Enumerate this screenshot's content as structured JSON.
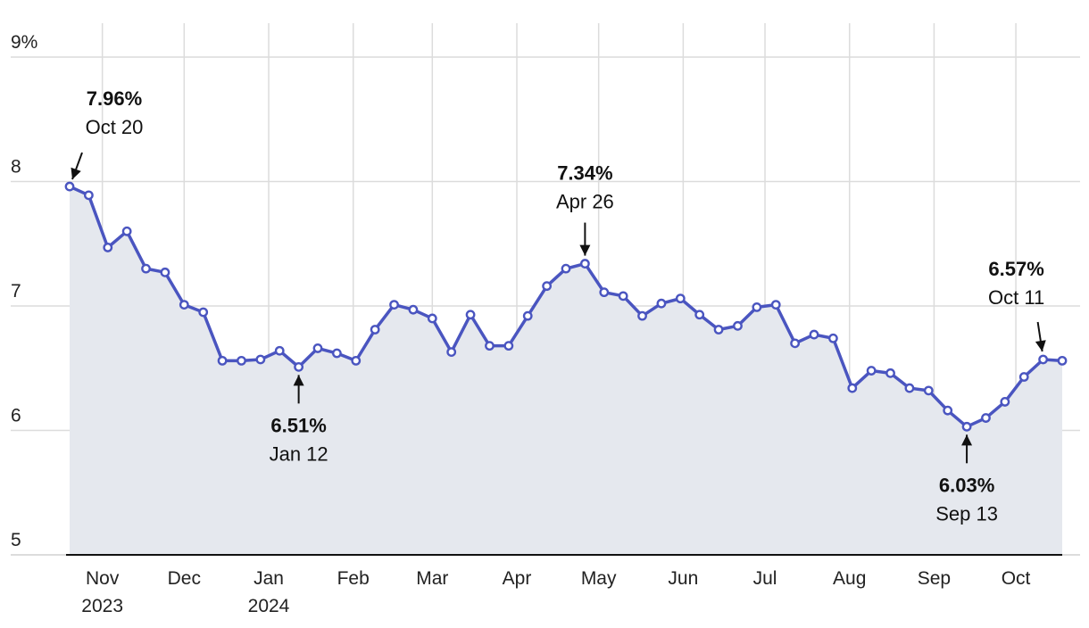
{
  "chart_data": {
    "type": "area",
    "ylim": [
      5,
      9
    ],
    "yticks": [
      {
        "value": 9,
        "label": "9%"
      },
      {
        "value": 8,
        "label": "8"
      },
      {
        "value": 7,
        "label": "7"
      },
      {
        "value": 6,
        "label": "6"
      },
      {
        "value": 5,
        "label": "5"
      }
    ],
    "xlim": [
      "2023-10-20",
      "2024-10-18"
    ],
    "xticks": [
      {
        "date": "2023-11-01",
        "label": "Nov",
        "sublabel": "2023"
      },
      {
        "date": "2023-12-01",
        "label": "Dec",
        "sublabel": ""
      },
      {
        "date": "2024-01-01",
        "label": "Jan",
        "sublabel": "2024"
      },
      {
        "date": "2024-02-01",
        "label": "Feb",
        "sublabel": ""
      },
      {
        "date": "2024-03-01",
        "label": "Mar",
        "sublabel": ""
      },
      {
        "date": "2024-04-01",
        "label": "Apr",
        "sublabel": ""
      },
      {
        "date": "2024-05-01",
        "label": "May",
        "sublabel": ""
      },
      {
        "date": "2024-06-01",
        "label": "Jun",
        "sublabel": ""
      },
      {
        "date": "2024-07-01",
        "label": "Jul",
        "sublabel": ""
      },
      {
        "date": "2024-08-01",
        "label": "Aug",
        "sublabel": ""
      },
      {
        "date": "2024-09-01",
        "label": "Sep",
        "sublabel": ""
      },
      {
        "date": "2024-10-01",
        "label": "Oct",
        "sublabel": ""
      }
    ],
    "grid": true,
    "colors": {
      "line": "#4a55c0",
      "fill": "#e5e8ee",
      "marker_fill": "#ffffff"
    },
    "series": [
      {
        "x": [
          "2023-10-20",
          "2023-10-27",
          "2023-11-03",
          "2023-11-10",
          "2023-11-17",
          "2023-11-24",
          "2023-12-01",
          "2023-12-08",
          "2023-12-15",
          "2023-12-22",
          "2023-12-29",
          "2024-01-05",
          "2024-01-12",
          "2024-01-19",
          "2024-01-26",
          "2024-02-02",
          "2024-02-09",
          "2024-02-16",
          "2024-02-23",
          "2024-03-01",
          "2024-03-08",
          "2024-03-15",
          "2024-03-22",
          "2024-03-29",
          "2024-04-05",
          "2024-04-12",
          "2024-04-19",
          "2024-04-26",
          "2024-05-03",
          "2024-05-10",
          "2024-05-17",
          "2024-05-24",
          "2024-05-31",
          "2024-06-07",
          "2024-06-14",
          "2024-06-21",
          "2024-06-28",
          "2024-07-05",
          "2024-07-12",
          "2024-07-19",
          "2024-07-26",
          "2024-08-02",
          "2024-08-09",
          "2024-08-16",
          "2024-08-23",
          "2024-08-30",
          "2024-09-06",
          "2024-09-13",
          "2024-09-20",
          "2024-09-27",
          "2024-10-04",
          "2024-10-11",
          "2024-10-18"
        ],
        "y": [
          7.96,
          7.89,
          7.47,
          7.6,
          7.3,
          7.27,
          7.01,
          6.95,
          6.56,
          6.56,
          6.57,
          6.64,
          6.51,
          6.66,
          6.62,
          6.56,
          6.81,
          7.01,
          6.97,
          6.9,
          6.63,
          6.93,
          6.68,
          6.68,
          6.92,
          7.16,
          7.3,
          7.34,
          7.11,
          7.08,
          6.92,
          7.02,
          7.06,
          6.93,
          6.81,
          6.84,
          6.99,
          7.01,
          6.7,
          6.77,
          6.74,
          6.34,
          6.48,
          6.46,
          6.34,
          6.32,
          6.16,
          6.03,
          6.1,
          6.23,
          6.43,
          6.57,
          6.56
        ]
      }
    ],
    "annotations": [
      {
        "date": "2023-10-20",
        "value": 7.96,
        "value_label": "7.96%",
        "date_label": "Oct 20",
        "position": "above"
      },
      {
        "date": "2024-01-12",
        "value": 6.51,
        "value_label": "6.51%",
        "date_label": "Jan 12",
        "position": "below"
      },
      {
        "date": "2024-04-26",
        "value": 7.34,
        "value_label": "7.34%",
        "date_label": "Apr 26",
        "position": "above"
      },
      {
        "date": "2024-09-13",
        "value": 6.03,
        "value_label": "6.03%",
        "date_label": "Sep 13",
        "position": "below"
      },
      {
        "date": "2024-10-11",
        "value": 6.57,
        "value_label": "6.57%",
        "date_label": "Oct 11",
        "position": "above"
      }
    ]
  }
}
